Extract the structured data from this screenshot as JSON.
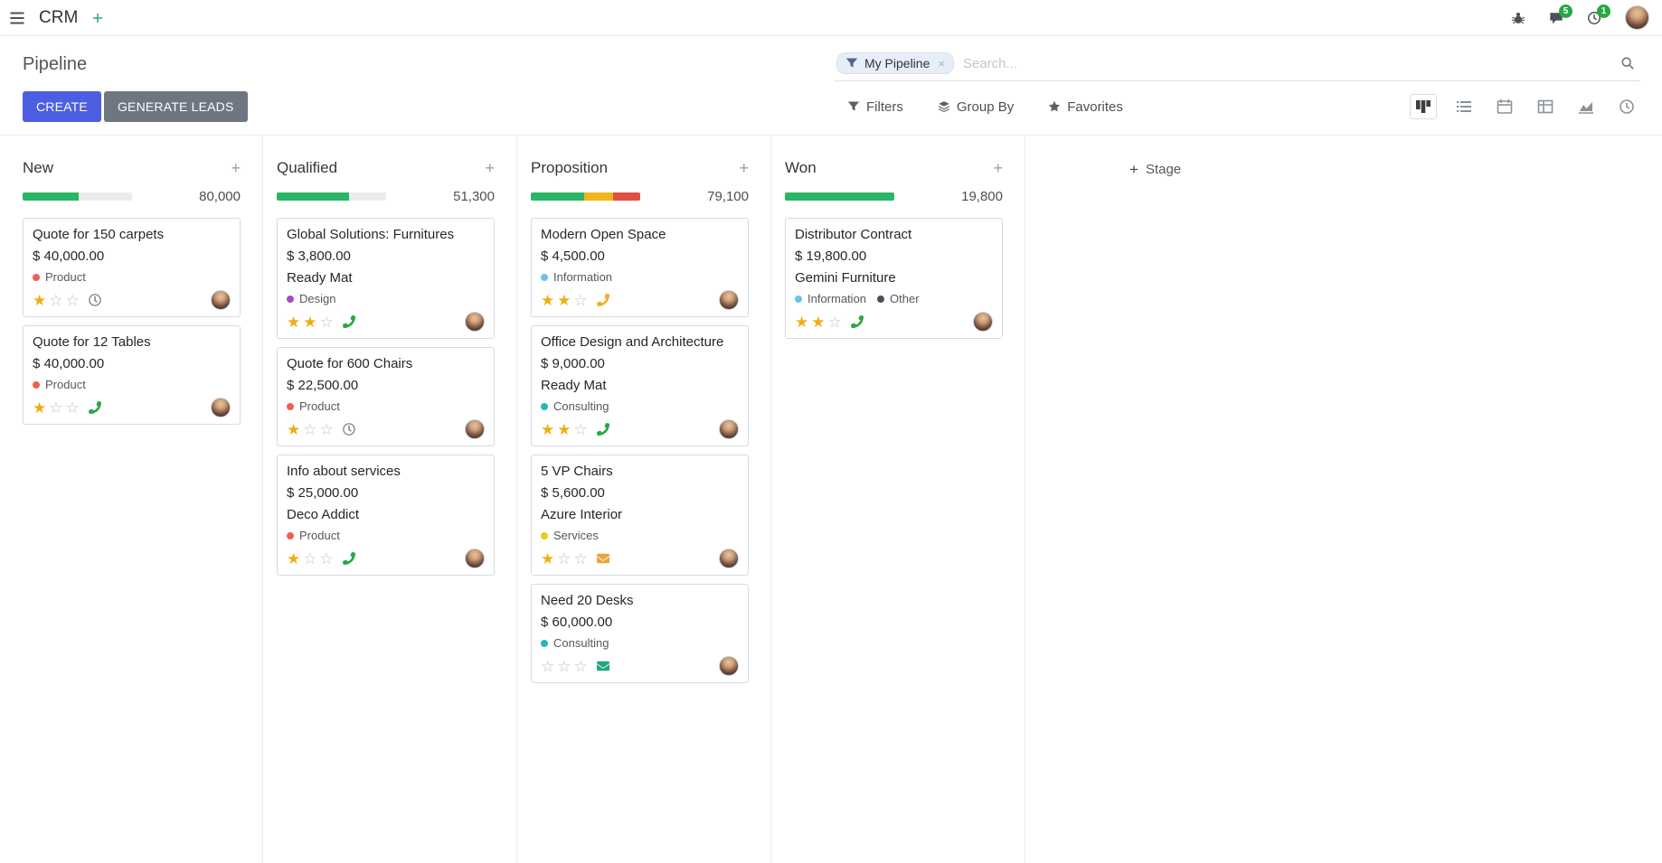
{
  "colors": {
    "primary": "#4c5fe2",
    "secondary": "#6e7681",
    "success": "#2ab666",
    "warning": "#f2b51d",
    "danger": "#e04f44",
    "muted_bar": "#e9ecef",
    "star": "#f0ad12",
    "badge": "#28a745",
    "nav_plus": "#3aa383"
  },
  "navbar": {
    "brand": "CRM",
    "messages_badge": "5",
    "activities_badge": "1"
  },
  "control_panel": {
    "breadcrumb": "Pipeline",
    "create_label": "CREATE",
    "generate_leads_label": "GENERATE LEADS",
    "search": {
      "facet_label": "My Pipeline",
      "placeholder": "Search..."
    },
    "menus": {
      "filters": "Filters",
      "group_by": "Group By",
      "favorites": "Favorites"
    }
  },
  "kanban": {
    "add_stage_label": "Stage",
    "columns": [
      {
        "title": "New",
        "total": "80,000",
        "progress": [
          {
            "type": "success",
            "pct": 51
          },
          {
            "type": "muted",
            "pct": 49
          }
        ],
        "cards": [
          {
            "title": "Quote for 150 carpets",
            "amount": "$ 40,000.00",
            "tags": [
              {
                "label": "Product",
                "color": "#f06050"
              }
            ],
            "stars": 1,
            "activity": {
              "icon": "clock",
              "color": "#7a8187"
            }
          },
          {
            "title": "Quote for 12 Tables",
            "amount": "$ 40,000.00",
            "tags": [
              {
                "label": "Product",
                "color": "#f06050"
              }
            ],
            "stars": 1,
            "activity": {
              "icon": "phone",
              "color": "#28a745"
            }
          }
        ]
      },
      {
        "title": "Qualified",
        "total": "51,300",
        "progress": [
          {
            "type": "success",
            "pct": 66
          },
          {
            "type": "muted",
            "pct": 34
          }
        ],
        "cards": [
          {
            "title": "Global Solutions: Furnitures",
            "amount": "$ 3,800.00",
            "company": "Ready Mat",
            "tags": [
              {
                "label": "Design",
                "color": "#a34fbc"
              }
            ],
            "stars": 2,
            "activity": {
              "icon": "phone",
              "color": "#28a745"
            }
          },
          {
            "title": "Quote for 600 Chairs",
            "amount": "$ 22,500.00",
            "tags": [
              {
                "label": "Product",
                "color": "#f06050"
              }
            ],
            "stars": 1,
            "activity": {
              "icon": "clock",
              "color": "#7a8187"
            }
          },
          {
            "title": "Info about services",
            "amount": "$ 25,000.00",
            "company": "Deco Addict",
            "tags": [
              {
                "label": "Product",
                "color": "#f06050"
              }
            ],
            "stars": 1,
            "activity": {
              "icon": "phone",
              "color": "#28a745"
            }
          }
        ]
      },
      {
        "title": "Proposition",
        "total": "79,100",
        "progress": [
          {
            "type": "success",
            "pct": 49
          },
          {
            "type": "warning",
            "pct": 26
          },
          {
            "type": "danger",
            "pct": 25
          }
        ],
        "cards": [
          {
            "title": "Modern Open Space",
            "amount": "$ 4,500.00",
            "tags": [
              {
                "label": "Information",
                "color": "#6cc1ed"
              }
            ],
            "stars": 2,
            "activity": {
              "icon": "phone",
              "color": "#efaf2c"
            }
          },
          {
            "title": "Office Design and Architecture",
            "amount": "$ 9,000.00",
            "company": "Ready Mat",
            "tags": [
              {
                "label": "Consulting",
                "color": "#27b8af"
              }
            ],
            "stars": 2,
            "activity": {
              "icon": "phone",
              "color": "#28a745"
            }
          },
          {
            "title": "5 VP Chairs",
            "amount": "$ 5,600.00",
            "company": "Azure Interior",
            "tags": [
              {
                "label": "Services",
                "color": "#f0c81b"
              }
            ],
            "stars": 1,
            "activity": {
              "icon": "mail",
              "color": "#e8a33d"
            }
          },
          {
            "title": "Need 20 Desks",
            "amount": "$ 60,000.00",
            "tags": [
              {
                "label": "Consulting",
                "color": "#27b8af"
              }
            ],
            "stars": 0,
            "activity": {
              "icon": "mail",
              "color": "#23a580"
            }
          }
        ]
      },
      {
        "title": "Won",
        "total": "19,800",
        "progress": [
          {
            "type": "success",
            "pct": 100
          }
        ],
        "cards": [
          {
            "title": "Distributor Contract",
            "amount": "$ 19,800.00",
            "company": "Gemini Furniture",
            "tags": [
              {
                "label": "Information",
                "color": "#6cc1ed"
              },
              {
                "label": "Other",
                "color": "#475060"
              }
            ],
            "stars": 2,
            "activity": {
              "icon": "phone",
              "color": "#28a745"
            }
          }
        ]
      }
    ]
  }
}
